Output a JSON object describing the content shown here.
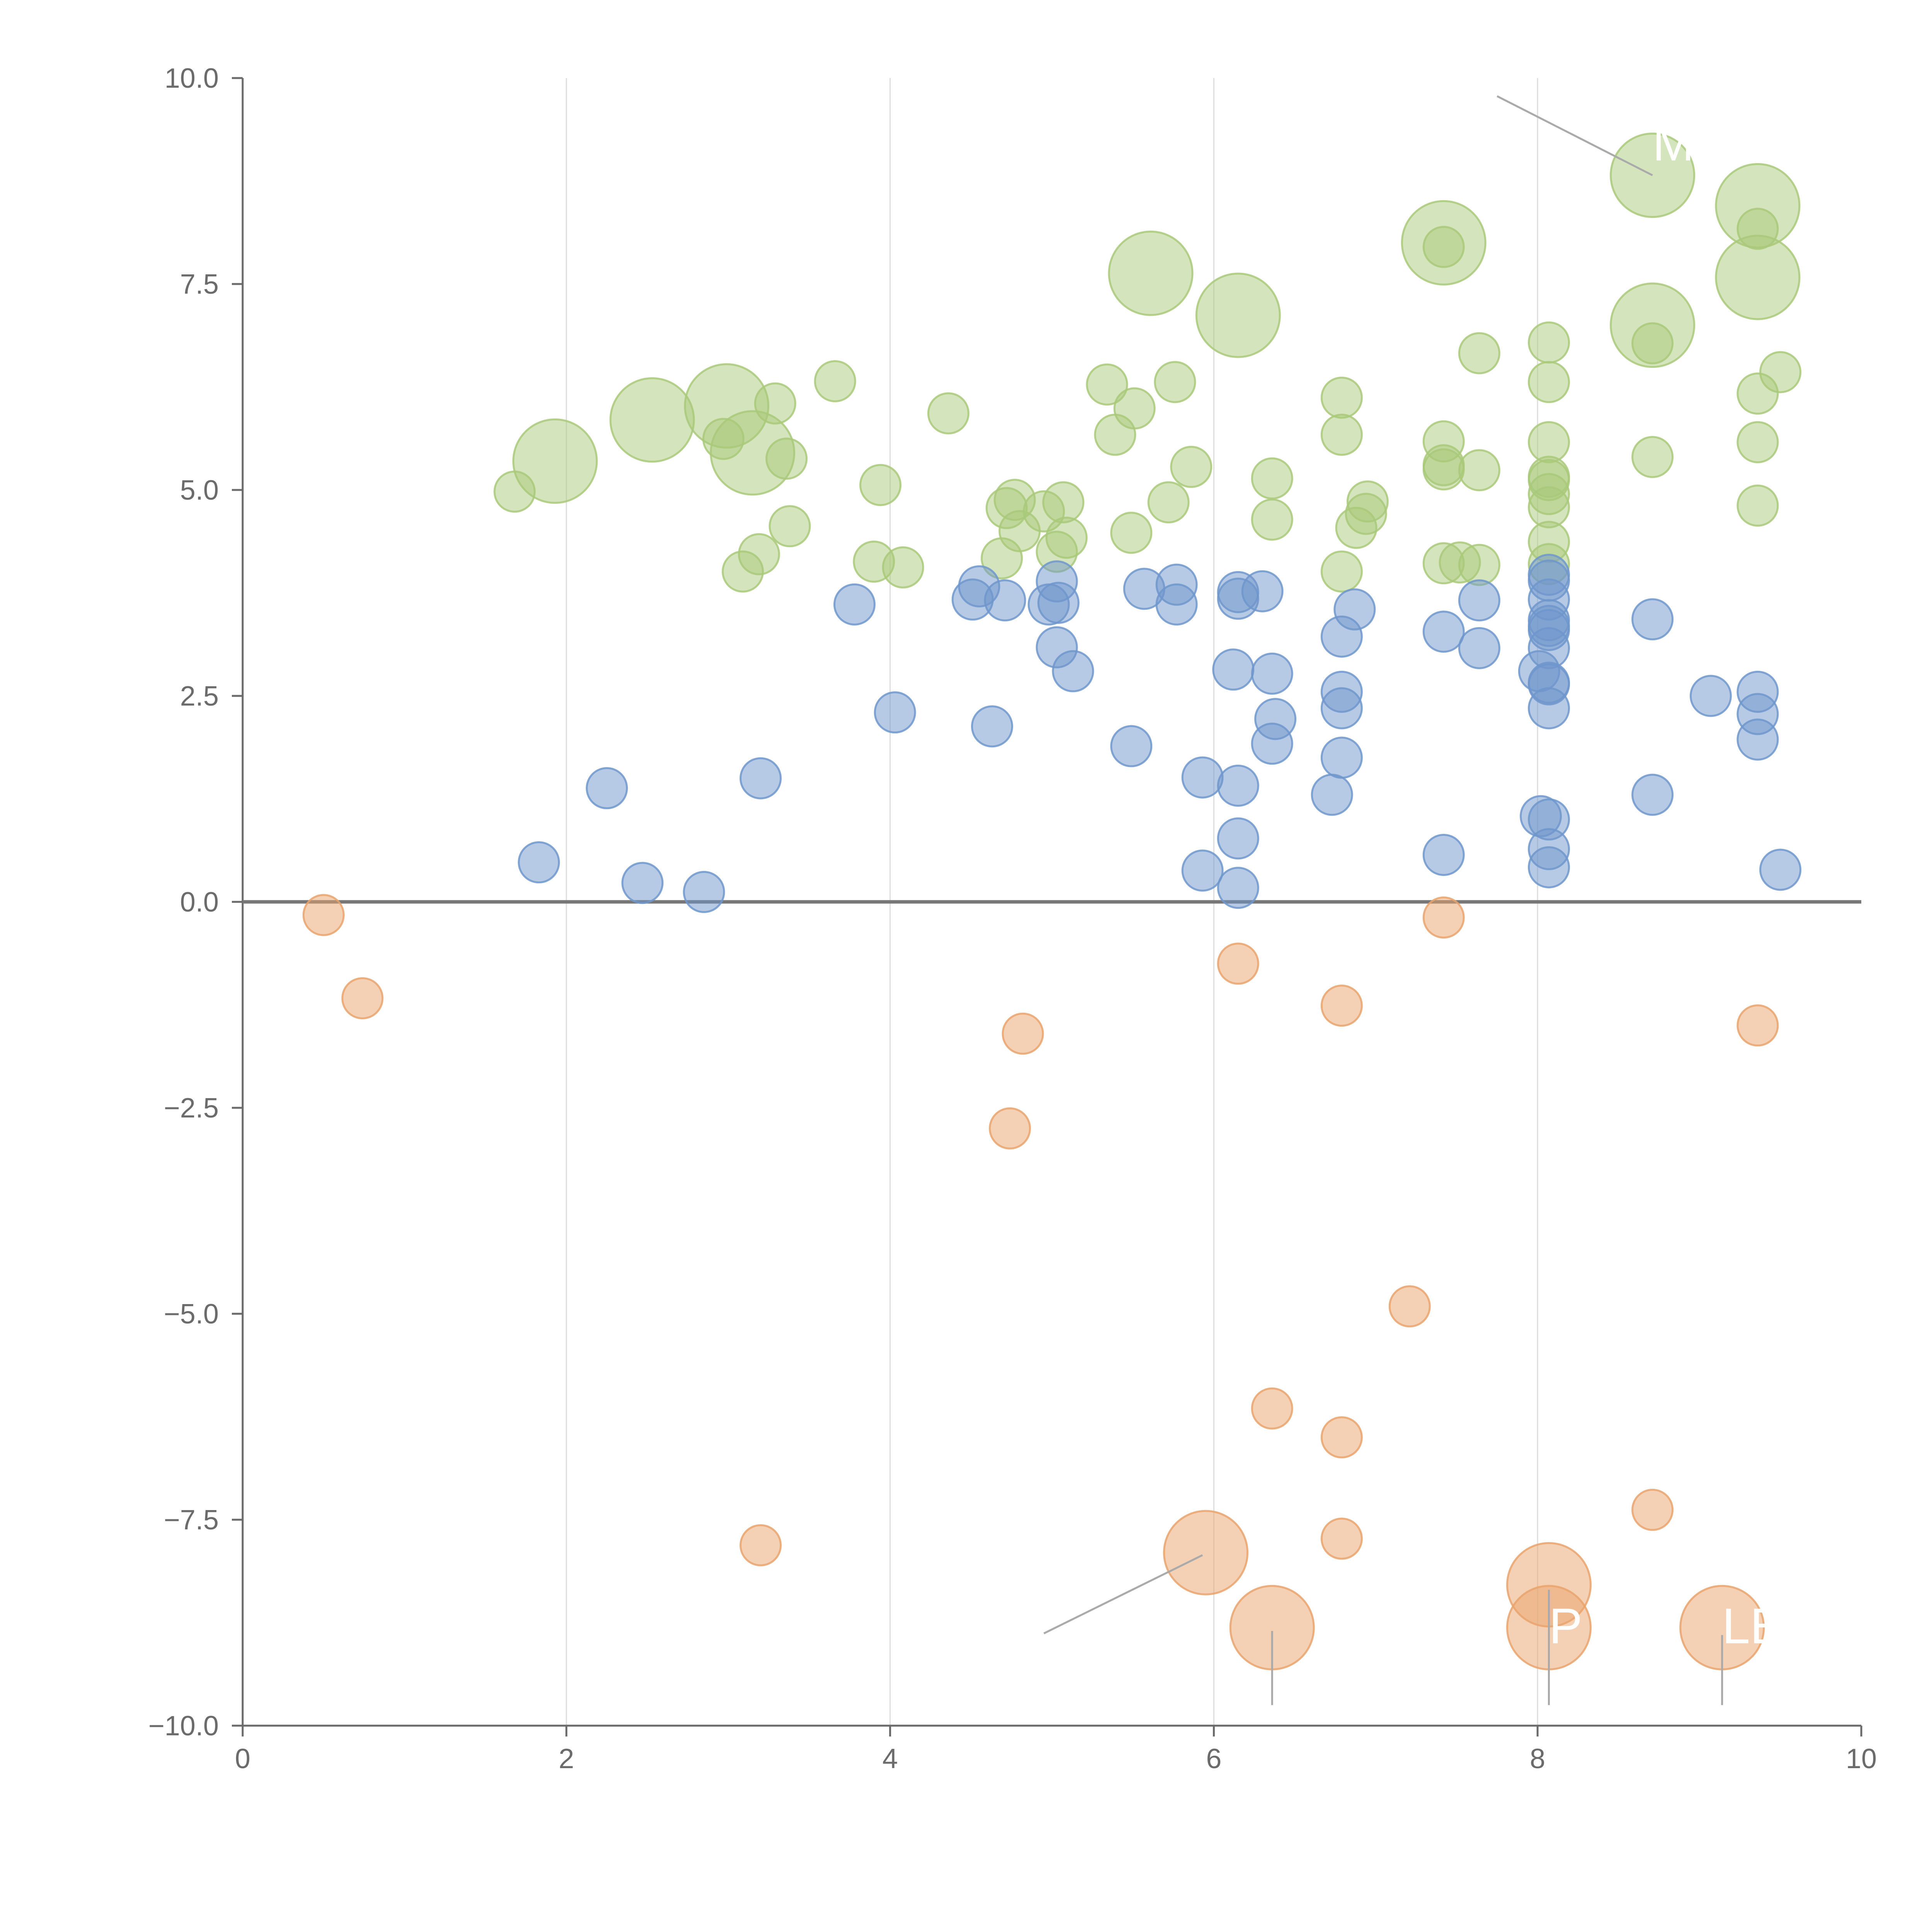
{
  "chart_data": {
    "type": "scatter",
    "title": "",
    "xlabel": "",
    "ylabel": "",
    "xlim": [
      0,
      10
    ],
    "ylim": [
      -10,
      10
    ],
    "grid": "vertical",
    "legend": "none",
    "x_ticks": [
      "0",
      "2",
      "4",
      "6",
      "8",
      "10"
    ],
    "y_ticks": [
      "10.0",
      "7.5",
      "5.0",
      "2.5",
      "0.0",
      "−2.5",
      "−5.0",
      "−7.5",
      "−10.0"
    ],
    "colors": {
      "green": "#a9c97a",
      "blue": "#6f96cc",
      "orange": "#e9a36c",
      "axis": "#6b6b6b",
      "grid": "#dddddd",
      "zero_line": "#777777",
      "leader": "#aaaaaa"
    },
    "series": [
      {
        "name": "green",
        "color": "#a9c97a",
        "points": [
          {
            "x": 1.68,
            "y": 4.98,
            "size": 1
          },
          {
            "x": 1.93,
            "y": 5.35,
            "size": 3
          },
          {
            "x": 2.53,
            "y": 5.85,
            "size": 3
          },
          {
            "x": 2.97,
            "y": 5.62,
            "size": 1
          },
          {
            "x": 2.99,
            "y": 6.02,
            "size": 3
          },
          {
            "x": 3.15,
            "y": 5.45,
            "size": 3
          },
          {
            "x": 3.29,
            "y": 6.05,
            "size": 1
          },
          {
            "x": 3.36,
            "y": 5.38,
            "size": 1
          },
          {
            "x": 3.38,
            "y": 4.56,
            "size": 1
          },
          {
            "x": 3.19,
            "y": 4.22,
            "size": 1
          },
          {
            "x": 3.09,
            "y": 4.01,
            "size": 1
          },
          {
            "x": 3.66,
            "y": 6.32,
            "size": 1
          },
          {
            "x": 3.94,
            "y": 5.06,
            "size": 1
          },
          {
            "x": 3.9,
            "y": 4.13,
            "size": 1
          },
          {
            "x": 4.08,
            "y": 4.06,
            "size": 1
          },
          {
            "x": 4.36,
            "y": 5.93,
            "size": 1
          },
          {
            "x": 4.69,
            "y": 4.17,
            "size": 1
          },
          {
            "x": 4.72,
            "y": 4.78,
            "size": 1
          },
          {
            "x": 4.77,
            "y": 4.88,
            "size": 1
          },
          {
            "x": 4.8,
            "y": 4.5,
            "size": 1
          },
          {
            "x": 4.95,
            "y": 4.74,
            "size": 1
          },
          {
            "x": 5.03,
            "y": 4.25,
            "size": 1
          },
          {
            "x": 5.07,
            "y": 4.85,
            "size": 1
          },
          {
            "x": 5.09,
            "y": 4.42,
            "size": 1
          },
          {
            "x": 5.34,
            "y": 6.28,
            "size": 1
          },
          {
            "x": 5.39,
            "y": 5.67,
            "size": 1
          },
          {
            "x": 5.49,
            "y": 4.48,
            "size": 1
          },
          {
            "x": 5.51,
            "y": 5.99,
            "size": 1
          },
          {
            "x": 5.61,
            "y": 7.63,
            "size": 3
          },
          {
            "x": 5.72,
            "y": 4.85,
            "size": 1
          },
          {
            "x": 5.76,
            "y": 6.31,
            "size": 1
          },
          {
            "x": 5.86,
            "y": 5.28,
            "size": 1
          },
          {
            "x": 6.15,
            "y": 7.12,
            "size": 3
          },
          {
            "x": 6.36,
            "y": 5.14,
            "size": 1
          },
          {
            "x": 6.36,
            "y": 4.64,
            "size": 1
          },
          {
            "x": 6.79,
            "y": 6.12,
            "size": 1
          },
          {
            "x": 6.79,
            "y": 5.67,
            "size": 1
          },
          {
            "x": 6.79,
            "y": 4.01,
            "size": 1
          },
          {
            "x": 6.88,
            "y": 4.54,
            "size": 1
          },
          {
            "x": 6.95,
            "y": 4.86,
            "size": 1
          },
          {
            "x": 6.94,
            "y": 4.71,
            "size": 1
          },
          {
            "x": 7.42,
            "y": 8.0,
            "size": 3
          },
          {
            "x": 7.42,
            "y": 7.95,
            "size": 1
          },
          {
            "x": 7.42,
            "y": 5.59,
            "size": 1
          },
          {
            "x": 7.42,
            "y": 5.3,
            "size": 1
          },
          {
            "x": 7.42,
            "y": 5.25,
            "size": 1
          },
          {
            "x": 7.42,
            "y": 4.11,
            "size": 1
          },
          {
            "x": 7.52,
            "y": 4.12,
            "size": 1
          },
          {
            "x": 7.64,
            "y": 6.66,
            "size": 1
          },
          {
            "x": 7.64,
            "y": 5.24,
            "size": 1
          },
          {
            "x": 7.64,
            "y": 4.09,
            "size": 1
          },
          {
            "x": 8.07,
            "y": 6.79,
            "size": 1
          },
          {
            "x": 8.07,
            "y": 6.31,
            "size": 1
          },
          {
            "x": 8.07,
            "y": 5.58,
            "size": 1
          },
          {
            "x": 8.07,
            "y": 5.16,
            "size": 1
          },
          {
            "x": 8.07,
            "y": 5.12,
            "size": 1
          },
          {
            "x": 8.07,
            "y": 4.95,
            "size": 1
          },
          {
            "x": 8.07,
            "y": 4.79,
            "size": 1
          },
          {
            "x": 8.07,
            "y": 4.37,
            "size": 1
          },
          {
            "x": 8.07,
            "y": 4.1,
            "size": 1
          },
          {
            "x": 8.71,
            "y": 8.82,
            "size": 3
          },
          {
            "x": 8.71,
            "y": 7.0,
            "size": 3
          },
          {
            "x": 8.71,
            "y": 6.78,
            "size": 1
          },
          {
            "x": 8.71,
            "y": 5.4,
            "size": 1
          },
          {
            "x": 9.36,
            "y": 8.45,
            "size": 3
          },
          {
            "x": 9.36,
            "y": 8.17,
            "size": 1
          },
          {
            "x": 9.36,
            "y": 7.58,
            "size": 3
          },
          {
            "x": 9.36,
            "y": 6.17,
            "size": 1
          },
          {
            "x": 9.36,
            "y": 5.58,
            "size": 1
          },
          {
            "x": 9.36,
            "y": 4.81,
            "size": 1
          },
          {
            "x": 9.5,
            "y": 6.43,
            "size": 1
          }
        ]
      },
      {
        "name": "blue",
        "color": "#6f96cc",
        "points": [
          {
            "x": 1.83,
            "y": 0.48,
            "size": 1
          },
          {
            "x": 2.25,
            "y": 1.38,
            "size": 1
          },
          {
            "x": 2.47,
            "y": 0.23,
            "size": 1
          },
          {
            "x": 2.85,
            "y": 0.12,
            "size": 1
          },
          {
            "x": 3.2,
            "y": 1.5,
            "size": 1
          },
          {
            "x": 3.78,
            "y": 3.61,
            "size": 1
          },
          {
            "x": 4.03,
            "y": 2.3,
            "size": 1
          },
          {
            "x": 4.51,
            "y": 3.67,
            "size": 1
          },
          {
            "x": 4.55,
            "y": 3.83,
            "size": 1
          },
          {
            "x": 4.63,
            "y": 2.13,
            "size": 1
          },
          {
            "x": 4.71,
            "y": 3.66,
            "size": 1
          },
          {
            "x": 4.98,
            "y": 3.61,
            "size": 1
          },
          {
            "x": 5.03,
            "y": 3.89,
            "size": 1
          },
          {
            "x": 5.03,
            "y": 3.09,
            "size": 1
          },
          {
            "x": 5.04,
            "y": 3.63,
            "size": 1
          },
          {
            "x": 5.13,
            "y": 2.8,
            "size": 1
          },
          {
            "x": 5.49,
            "y": 1.89,
            "size": 1
          },
          {
            "x": 5.57,
            "y": 3.8,
            "size": 1
          },
          {
            "x": 5.77,
            "y": 3.85,
            "size": 1
          },
          {
            "x": 5.77,
            "y": 3.61,
            "size": 1
          },
          {
            "x": 5.93,
            "y": 1.51,
            "size": 1
          },
          {
            "x": 5.93,
            "y": 0.38,
            "size": 1
          },
          {
            "x": 6.12,
            "y": 2.82,
            "size": 1
          },
          {
            "x": 6.15,
            "y": 3.76,
            "size": 1
          },
          {
            "x": 6.15,
            "y": 3.68,
            "size": 1
          },
          {
            "x": 6.15,
            "y": 1.41,
            "size": 1
          },
          {
            "x": 6.15,
            "y": 0.77,
            "size": 1
          },
          {
            "x": 6.15,
            "y": 0.17,
            "size": 1
          },
          {
            "x": 6.3,
            "y": 3.77,
            "size": 1
          },
          {
            "x": 6.36,
            "y": 2.77,
            "size": 1
          },
          {
            "x": 6.38,
            "y": 2.22,
            "size": 1
          },
          {
            "x": 6.36,
            "y": 1.92,
            "size": 1
          },
          {
            "x": 6.73,
            "y": 1.3,
            "size": 1
          },
          {
            "x": 6.79,
            "y": 3.22,
            "size": 1
          },
          {
            "x": 6.79,
            "y": 2.55,
            "size": 1
          },
          {
            "x": 6.79,
            "y": 2.35,
            "size": 1
          },
          {
            "x": 6.79,
            "y": 1.75,
            "size": 1
          },
          {
            "x": 6.87,
            "y": 3.55,
            "size": 1
          },
          {
            "x": 7.42,
            "y": 3.28,
            "size": 1
          },
          {
            "x": 7.42,
            "y": 0.57,
            "size": 1
          },
          {
            "x": 7.64,
            "y": 3.66,
            "size": 1
          },
          {
            "x": 7.64,
            "y": 3.08,
            "size": 1
          },
          {
            "x": 8.01,
            "y": 2.8,
            "size": 1
          },
          {
            "x": 8.02,
            "y": 1.04,
            "size": 1
          },
          {
            "x": 8.07,
            "y": 3.97,
            "size": 1
          },
          {
            "x": 8.07,
            "y": 3.9,
            "size": 1
          },
          {
            "x": 8.07,
            "y": 3.67,
            "size": 1
          },
          {
            "x": 8.07,
            "y": 3.42,
            "size": 1
          },
          {
            "x": 8.07,
            "y": 3.35,
            "size": 1
          },
          {
            "x": 8.07,
            "y": 3.3,
            "size": 1
          },
          {
            "x": 8.07,
            "y": 3.08,
            "size": 1
          },
          {
            "x": 8.07,
            "y": 2.66,
            "size": 1
          },
          {
            "x": 8.07,
            "y": 2.64,
            "size": 1
          },
          {
            "x": 8.07,
            "y": 2.35,
            "size": 1
          },
          {
            "x": 8.07,
            "y": 1.0,
            "size": 1
          },
          {
            "x": 8.07,
            "y": 0.64,
            "size": 1
          },
          {
            "x": 8.07,
            "y": 0.42,
            "size": 1
          },
          {
            "x": 8.71,
            "y": 3.43,
            "size": 1
          },
          {
            "x": 8.71,
            "y": 1.3,
            "size": 1
          },
          {
            "x": 9.07,
            "y": 2.5,
            "size": 1
          },
          {
            "x": 9.36,
            "y": 2.55,
            "size": 1
          },
          {
            "x": 9.36,
            "y": 2.28,
            "size": 1
          },
          {
            "x": 9.36,
            "y": 1.97,
            "size": 1
          },
          {
            "x": 9.5,
            "y": 0.39,
            "size": 1
          }
        ]
      },
      {
        "name": "orange",
        "color": "#e9a36c",
        "points": [
          {
            "x": 0.5,
            "y": -0.16,
            "size": 1
          },
          {
            "x": 0.74,
            "y": -1.17,
            "size": 1
          },
          {
            "x": 3.2,
            "y": -7.81,
            "size": 1
          },
          {
            "x": 4.74,
            "y": -2.75,
            "size": 1
          },
          {
            "x": 4.82,
            "y": -1.6,
            "size": 1
          },
          {
            "x": 5.95,
            "y": -7.9,
            "size": 3
          },
          {
            "x": 6.15,
            "y": -0.75,
            "size": 1
          },
          {
            "x": 6.36,
            "y": -6.15,
            "size": 1
          },
          {
            "x": 6.36,
            "y": -8.81,
            "size": 3
          },
          {
            "x": 6.79,
            "y": -1.26,
            "size": 1
          },
          {
            "x": 6.79,
            "y": -6.5,
            "size": 1
          },
          {
            "x": 6.79,
            "y": -7.73,
            "size": 1
          },
          {
            "x": 7.21,
            "y": -4.91,
            "size": 1
          },
          {
            "x": 7.42,
            "y": -0.19,
            "size": 1
          },
          {
            "x": 8.07,
            "y": -8.29,
            "size": 3
          },
          {
            "x": 8.07,
            "y": -8.81,
            "size": 3
          },
          {
            "x": 8.71,
            "y": -7.38,
            "size": 1
          },
          {
            "x": 9.14,
            "y": -8.81,
            "size": 3
          },
          {
            "x": 9.36,
            "y": -1.5,
            "size": 1
          }
        ]
      }
    ],
    "annotations": [
      {
        "label": "M",
        "x": 8.71,
        "y": 9.0,
        "line_from": [
          7.75,
          9.78
        ],
        "line_to": [
          8.71,
          8.82
        ]
      },
      {
        "label": "P",
        "x": 8.07,
        "y": -9.0,
        "line_from": [
          8.07,
          -8.35
        ],
        "line_to": [
          8.07,
          -9.75
        ]
      },
      {
        "label": "LE",
        "x": 9.14,
        "y": -9.0,
        "line_from": [
          9.14,
          -8.9
        ],
        "line_to": [
          9.14,
          -9.75
        ]
      }
    ],
    "extra_leader_lines": [
      {
        "from": [
          4.95,
          -8.88
        ],
        "to": [
          5.93,
          -7.93
        ]
      },
      {
        "from": [
          6.36,
          -8.85
        ],
        "to": [
          6.36,
          -9.75
        ]
      }
    ]
  }
}
